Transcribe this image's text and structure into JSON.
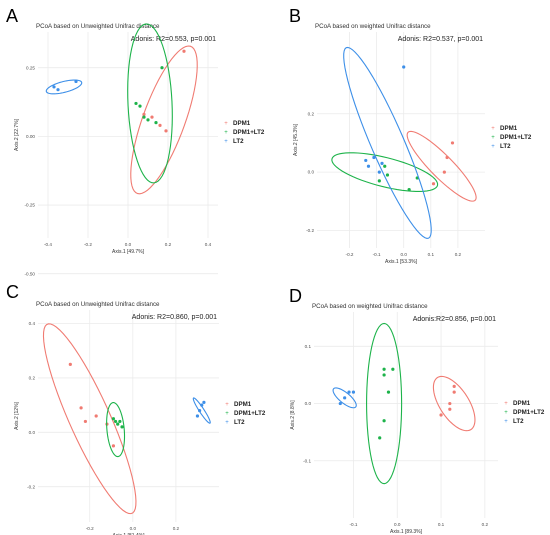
{
  "colors": {
    "DPM1": "#f07b72",
    "DPM1+LT2": "#1db34a",
    "LT2": "#3d8fe8",
    "grid": "#ebebeb",
    "axis_text": "#4d4d4d"
  },
  "legend_marker": "+",
  "chart_data": [
    {
      "panel": "A",
      "type": "scatter",
      "title": "PCoA based on Unweighted Unifrac distance",
      "annotation": "Adonis: R2=0.553, p=0.001",
      "xlabel": "Axis.1  [49.7%]",
      "ylabel": "Axis.2  [22.7%]",
      "xlim": [
        -0.45,
        0.45
      ],
      "ylim": [
        -0.37,
        0.38
      ],
      "xticks": [
        "-0.4",
        "-0.2",
        "0.0",
        "0.2",
        "0.4"
      ],
      "xtick_values": [
        -0.4,
        -0.2,
        0.0,
        0.2,
        0.4
      ],
      "yticks": [
        "0.25",
        "0.00",
        "-0.25",
        "-0.50"
      ],
      "ytick_values": [
        0.25,
        0.0,
        -0.25,
        -0.5
      ],
      "legend": [
        "DPM1",
        "DPM1+LT2",
        "LT2"
      ],
      "series": [
        {
          "name": "DPM1",
          "points": [
            [
              0.28,
              0.31
            ],
            [
              0.19,
              0.02
            ],
            [
              0.16,
              0.04
            ],
            [
              0.12,
              0.07
            ],
            [
              0.08,
              0.08
            ]
          ],
          "ellipse": {
            "cx": 0.18,
            "cy": 0.06,
            "rx": 0.3,
            "ry": 0.1,
            "angle": 62
          }
        },
        {
          "name": "DPM1+LT2",
          "points": [
            [
              0.17,
              0.25
            ],
            [
              0.04,
              0.12
            ],
            [
              0.06,
              0.11
            ],
            [
              0.1,
              0.06
            ],
            [
              0.14,
              0.05
            ],
            [
              0.08,
              0.07
            ]
          ],
          "ellipse": {
            "cx": 0.11,
            "cy": 0.12,
            "rx": 0.29,
            "ry": 0.11,
            "angle": -86
          }
        },
        {
          "name": "LT2",
          "points": [
            [
              -0.37,
              0.18
            ],
            [
              -0.35,
              0.17
            ],
            [
              -0.26,
              0.2
            ]
          ],
          "ellipse": {
            "cx": -0.32,
            "cy": 0.18,
            "rx": 0.09,
            "ry": 0.02,
            "angle": 10
          }
        }
      ]
    },
    {
      "panel": "B",
      "type": "scatter",
      "title": "PCoA based on weighted Unifrac distance",
      "annotation": "Adonis: R2=0.537, p=0.001",
      "xlabel": "Axis.1  [53.3%]",
      "ylabel": "Axis.2  [45.3%]",
      "xlim": [
        -0.32,
        0.3
      ],
      "ylim": [
        -0.26,
        0.48
      ],
      "xticks": [
        "-0.2",
        "-0.1",
        "0.0",
        "0.1",
        "0.2"
      ],
      "xtick_values": [
        -0.2,
        -0.1,
        0.0,
        0.1,
        0.2
      ],
      "yticks": [
        "0.2",
        "0.0",
        "-0.2"
      ],
      "ytick_values": [
        0.2,
        0.0,
        -0.2
      ],
      "legend": [
        "DPM1",
        "DPM1+LT2",
        "LT2"
      ],
      "series": [
        {
          "name": "DPM1",
          "points": [
            [
              0.18,
              0.1
            ],
            [
              0.16,
              0.05
            ],
            [
              0.15,
              0.0
            ],
            [
              0.11,
              -0.04
            ]
          ],
          "ellipse": {
            "cx": 0.14,
            "cy": 0.02,
            "rx": 0.17,
            "ry": 0.04,
            "angle": -43
          }
        },
        {
          "name": "DPM1+LT2",
          "points": [
            [
              0.05,
              -0.02
            ],
            [
              0.02,
              -0.06
            ],
            [
              -0.06,
              -0.01
            ],
            [
              -0.07,
              0.02
            ],
            [
              -0.09,
              -0.03
            ]
          ],
          "ellipse": {
            "cx": -0.07,
            "cy": 0.0,
            "rx": 0.2,
            "ry": 0.05,
            "angle": -13
          }
        },
        {
          "name": "LT2",
          "points": [
            [
              0.0,
              0.36
            ],
            [
              -0.14,
              0.04
            ],
            [
              -0.13,
              0.02
            ],
            [
              -0.11,
              0.05
            ],
            [
              -0.09,
              0.0
            ],
            [
              -0.08,
              0.03
            ]
          ],
          "ellipse": {
            "cx": -0.06,
            "cy": 0.1,
            "rx": 0.36,
            "ry": 0.06,
            "angle": -65
          }
        }
      ]
    },
    {
      "panel": "C",
      "type": "scatter",
      "title": "PCoA based on Unweighted Unifrac distance",
      "annotation": "Adonis: R2=0.860, p=0.001",
      "xlabel": "Axis.1  [81.4%]",
      "ylabel": "Axis.2  [12%]",
      "xlim": [
        -0.44,
        0.4
      ],
      "ylim": [
        -0.33,
        0.45
      ],
      "xticks": [
        "-0.2",
        "0.0",
        "0.2"
      ],
      "xtick_values": [
        -0.2,
        0.0,
        0.2
      ],
      "yticks": [
        "0.4",
        "0.2",
        "0.0",
        "-0.2"
      ],
      "ytick_values": [
        0.4,
        0.2,
        0.0,
        -0.2
      ],
      "legend": [
        "DPM1",
        "DPM1+LT2",
        "LT2"
      ],
      "series": [
        {
          "name": "DPM1",
          "points": [
            [
              -0.29,
              0.25
            ],
            [
              -0.24,
              0.09
            ],
            [
              -0.22,
              0.04
            ],
            [
              -0.17,
              0.06
            ],
            [
              -0.12,
              0.03
            ],
            [
              -0.09,
              -0.05
            ]
          ],
          "ellipse": {
            "cx": -0.2,
            "cy": 0.05,
            "rx": 0.4,
            "ry": 0.09,
            "angle": -60
          }
        },
        {
          "name": "DPM1+LT2",
          "points": [
            [
              -0.09,
              0.05
            ],
            [
              -0.08,
              0.04
            ],
            [
              -0.07,
              0.03
            ],
            [
              -0.06,
              0.04
            ],
            [
              -0.05,
              0.02
            ]
          ],
          "ellipse": {
            "cx": -0.08,
            "cy": 0.01,
            "rx": 0.1,
            "ry": 0.04,
            "angle": -83
          }
        },
        {
          "name": "LT2",
          "points": [
            [
              0.31,
              0.08
            ],
            [
              0.32,
              0.1
            ],
            [
              0.33,
              0.11
            ],
            [
              0.3,
              0.06
            ]
          ],
          "ellipse": {
            "cx": 0.32,
            "cy": 0.08,
            "rx": 0.06,
            "ry": 0.01,
            "angle": -50
          }
        }
      ]
    },
    {
      "panel": "D",
      "type": "scatter",
      "title": "PCoA based on weighted Unifrac distance",
      "annotation": "Adonis:R2=0.856, p=0.001",
      "xlabel": "Axis.1  [89.3%]",
      "ylabel": "Axis.2  [8.8%]",
      "xlim": [
        -0.19,
        0.23
      ],
      "ylim": [
        -0.2,
        0.16
      ],
      "xticks": [
        "-0.1",
        "0.0",
        "0.1",
        "0.2"
      ],
      "xtick_values": [
        -0.1,
        0.0,
        0.1,
        0.2
      ],
      "yticks": [
        "0.1",
        "0.0",
        "-0.1"
      ],
      "ytick_values": [
        0.1,
        0.0,
        -0.1
      ],
      "legend": [
        "DPM1",
        "DPM1+LT2",
        "LT2"
      ],
      "series": [
        {
          "name": "DPM1",
          "points": [
            [
              0.13,
              0.03
            ],
            [
              0.13,
              0.02
            ],
            [
              0.12,
              0.0
            ],
            [
              0.12,
              -0.01
            ],
            [
              0.1,
              -0.02
            ]
          ],
          "ellipse": {
            "cx": 0.13,
            "cy": 0.0,
            "rx": 0.06,
            "ry": 0.03,
            "angle": -45
          }
        },
        {
          "name": "DPM1+LT2",
          "points": [
            [
              -0.03,
              0.06
            ],
            [
              -0.03,
              0.05
            ],
            [
              -0.02,
              0.02
            ],
            [
              -0.03,
              -0.03
            ],
            [
              -0.04,
              -0.06
            ],
            [
              -0.01,
              0.06
            ]
          ],
          "ellipse": {
            "cx": -0.03,
            "cy": 0.0,
            "rx": 0.14,
            "ry": 0.04,
            "angle": -90
          }
        },
        {
          "name": "LT2",
          "points": [
            [
              -0.13,
              0.0
            ],
            [
              -0.12,
              0.01
            ],
            [
              -0.11,
              0.02
            ],
            [
              -0.1,
              0.02
            ]
          ],
          "ellipse": {
            "cx": -0.12,
            "cy": 0.01,
            "rx": 0.03,
            "ry": 0.01,
            "angle": -30
          }
        }
      ]
    }
  ]
}
